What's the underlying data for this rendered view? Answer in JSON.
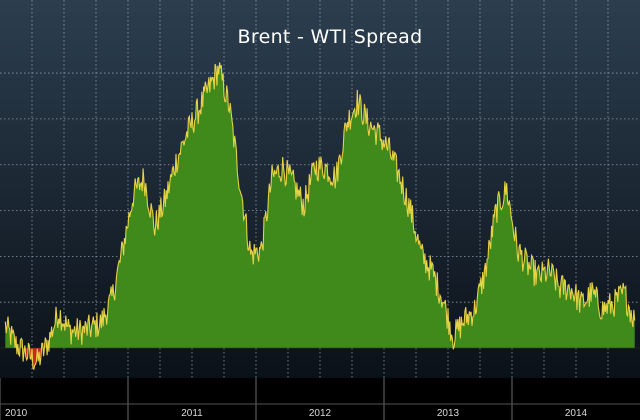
{
  "chart_data": {
    "type": "area",
    "title": "Brent - WTI Spread",
    "xlabel": "",
    "ylabel": "",
    "x_tick_labels": [
      "2010",
      "2011",
      "2012",
      "2013",
      "2014"
    ],
    "x_range": [
      "2010-01",
      "2014-12"
    ],
    "ylim": [
      -2,
      28
    ],
    "grid": true,
    "legend": "none",
    "colors": {
      "background_top": "#2c3e4f",
      "background_bottom": "#0b1118",
      "positive_fill": "#3f8a1a",
      "negative_fill": "#c9281b",
      "line": "#e6d245",
      "axis_band": "#000000",
      "grid": "#8a98a8"
    },
    "series": [
      {
        "points": [
          [
            "2010-01",
            2.0
          ],
          [
            "2010-02",
            0.3
          ],
          [
            "2010-03",
            -0.5
          ],
          [
            "2010-04",
            -1.3
          ],
          [
            "2010-05",
            0.5
          ],
          [
            "2010-06",
            3.3
          ],
          [
            "2010-07",
            1.6
          ],
          [
            "2010-08",
            1.5
          ],
          [
            "2010-09",
            1.8
          ],
          [
            "2010-10",
            2.3
          ],
          [
            "2010-11",
            4.5
          ],
          [
            "2010-12",
            9.0
          ],
          [
            "2011-01",
            14.0
          ],
          [
            "2011-02",
            15.5
          ],
          [
            "2011-03",
            11.0
          ],
          [
            "2011-04",
            13.5
          ],
          [
            "2011-05",
            17.0
          ],
          [
            "2011-06",
            19.5
          ],
          [
            "2011-07",
            21.5
          ],
          [
            "2011-08",
            23.5
          ],
          [
            "2011-09",
            25.5
          ],
          [
            "2011-10",
            22.0
          ],
          [
            "2011-11",
            15.0
          ],
          [
            "2011-12",
            8.5
          ],
          [
            "2012-01",
            9.0
          ],
          [
            "2012-02",
            15.5
          ],
          [
            "2012-03",
            16.5
          ],
          [
            "2012-04",
            15.0
          ],
          [
            "2012-05",
            13.0
          ],
          [
            "2012-06",
            16.5
          ],
          [
            "2012-07",
            16.5
          ],
          [
            "2012-08",
            15.5
          ],
          [
            "2012-09",
            20.5
          ],
          [
            "2012-10",
            22.5
          ],
          [
            "2012-11",
            20.5
          ],
          [
            "2012-12",
            19.5
          ],
          [
            "2013-01",
            18.0
          ],
          [
            "2013-02",
            15.5
          ],
          [
            "2013-03",
            12.5
          ],
          [
            "2013-04",
            8.5
          ],
          [
            "2013-05",
            7.0
          ],
          [
            "2013-06",
            4.5
          ],
          [
            "2013-07",
            1.0
          ],
          [
            "2013-08",
            2.5
          ],
          [
            "2013-09",
            3.5
          ],
          [
            "2013-10",
            7.0
          ],
          [
            "2013-11",
            12.5
          ],
          [
            "2013-12",
            14.5
          ],
          [
            "2014-01",
            9.0
          ],
          [
            "2014-02",
            7.5
          ],
          [
            "2014-03",
            6.5
          ],
          [
            "2014-04",
            7.0
          ],
          [
            "2014-05",
            5.5
          ],
          [
            "2014-06",
            5.5
          ],
          [
            "2014-07",
            4.0
          ],
          [
            "2014-08",
            5.0
          ],
          [
            "2014-09",
            3.5
          ],
          [
            "2014-10",
            4.0
          ],
          [
            "2014-11",
            5.0
          ],
          [
            "2014-12",
            2.5
          ]
        ]
      }
    ]
  }
}
